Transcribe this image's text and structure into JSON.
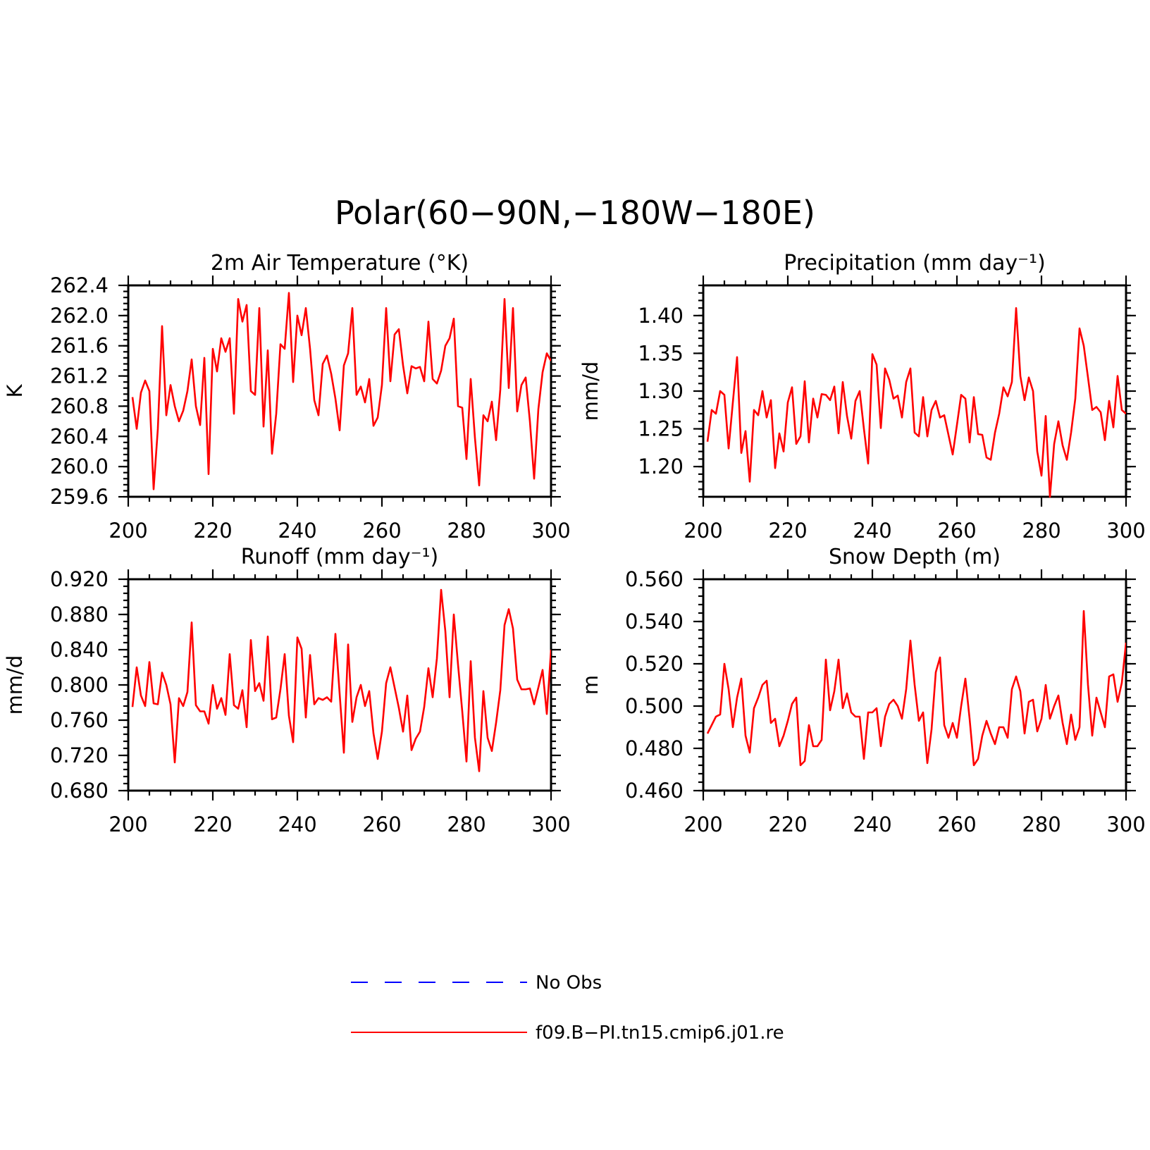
{
  "figure": {
    "title": "Polar(60−90N,−180W−180E)"
  },
  "legend": {
    "entries": [
      {
        "label": "No Obs",
        "color": "#0000ff",
        "dash": "dashed"
      },
      {
        "label": "f09.B−PI.tn15.cmip6.j01.re",
        "color": "#ff0000",
        "dash": "solid"
      }
    ]
  },
  "chart_data": [
    {
      "type": "line",
      "title": "2m Air Temperature (°K)",
      "ylabel": "K",
      "xlabel": "",
      "xlim": [
        200,
        300
      ],
      "ylim": [
        259.6,
        262.4
      ],
      "xticks": [
        "200",
        "220",
        "240",
        "260",
        "280",
        "300"
      ],
      "yticks": [
        "259.6",
        "260.0",
        "260.4",
        "260.8",
        "261.2",
        "261.6",
        "262.0",
        "262.4"
      ],
      "x_start": 201,
      "series": [
        {
          "color": "#ff0000",
          "values": [
            260.92,
            260.5,
            260.98,
            261.14,
            261.0,
            259.7,
            260.5,
            261.86,
            260.68,
            261.08,
            260.8,
            260.6,
            260.74,
            261.0,
            261.42,
            260.8,
            260.55,
            261.44,
            259.9,
            261.56,
            261.26,
            261.7,
            261.52,
            261.7,
            260.7,
            262.22,
            261.92,
            262.14,
            261.0,
            260.95,
            262.1,
            260.53,
            261.54,
            260.17,
            260.7,
            261.62,
            261.56,
            262.3,
            261.12,
            262.0,
            261.74,
            262.1,
            261.56,
            260.88,
            260.68,
            261.36,
            261.47,
            261.23,
            260.9,
            260.48,
            261.34,
            261.5,
            262.1,
            260.95,
            261.06,
            260.85,
            261.16,
            260.54,
            260.65,
            261.08,
            262.1,
            261.13,
            261.75,
            261.82,
            261.34,
            260.97,
            261.33,
            261.3,
            261.32,
            261.13,
            261.92,
            261.16,
            261.1,
            261.27,
            261.6,
            261.7,
            261.96,
            260.8,
            260.78,
            260.1,
            261.16,
            260.38,
            259.75,
            260.68,
            260.6,
            260.86,
            260.35,
            261.02,
            262.22,
            261.04,
            262.1,
            260.73,
            261.08,
            261.18,
            260.6,
            259.84,
            260.76,
            261.25,
            261.5,
            261.4
          ]
        }
      ]
    },
    {
      "type": "line",
      "title": "Precipitation (mm day⁻¹)",
      "ylabel": "mm/d",
      "xlabel": "",
      "xlim": [
        200,
        300
      ],
      "ylim": [
        1.16,
        1.44
      ],
      "xticks": [
        "200",
        "220",
        "240",
        "260",
        "280",
        "300"
      ],
      "yticks": [
        "1.20",
        "1.25",
        "1.30",
        "1.35",
        "1.40"
      ],
      "x_start": 201,
      "series": [
        {
          "color": "#ff0000",
          "values": [
            1.233,
            1.275,
            1.27,
            1.3,
            1.295,
            1.224,
            1.285,
            1.345,
            1.218,
            1.247,
            1.18,
            1.275,
            1.268,
            1.3,
            1.265,
            1.288,
            1.198,
            1.244,
            1.22,
            1.285,
            1.305,
            1.23,
            1.24,
            1.313,
            1.232,
            1.29,
            1.265,
            1.296,
            1.295,
            1.288,
            1.306,
            1.244,
            1.312,
            1.267,
            1.237,
            1.287,
            1.3,
            1.25,
            1.204,
            1.349,
            1.335,
            1.251,
            1.33,
            1.315,
            1.29,
            1.294,
            1.265,
            1.312,
            1.33,
            1.245,
            1.24,
            1.292,
            1.24,
            1.275,
            1.287,
            1.265,
            1.268,
            1.242,
            1.216,
            1.255,
            1.295,
            1.29,
            1.232,
            1.292,
            1.243,
            1.242,
            1.212,
            1.209,
            1.245,
            1.27,
            1.305,
            1.293,
            1.312,
            1.41,
            1.32,
            1.288,
            1.318,
            1.3,
            1.22,
            1.188,
            1.267,
            1.16,
            1.23,
            1.26,
            1.228,
            1.209,
            1.245,
            1.29,
            1.383,
            1.36,
            1.318,
            1.275,
            1.279,
            1.272,
            1.235,
            1.287,
            1.252,
            1.32,
            1.275,
            1.27
          ]
        }
      ]
    },
    {
      "type": "line",
      "title": "Runoff (mm day⁻¹)",
      "ylabel": "mm/d",
      "xlabel": "",
      "xlim": [
        200,
        300
      ],
      "ylim": [
        0.68,
        0.92
      ],
      "xticks": [
        "200",
        "220",
        "240",
        "260",
        "280",
        "300"
      ],
      "yticks": [
        "0.680",
        "0.720",
        "0.760",
        "0.800",
        "0.840",
        "0.880",
        "0.920"
      ],
      "x_start": 201,
      "series": [
        {
          "color": "#ff0000",
          "values": [
            0.775,
            0.82,
            0.788,
            0.776,
            0.826,
            0.779,
            0.778,
            0.814,
            0.8,
            0.778,
            0.712,
            0.785,
            0.776,
            0.792,
            0.871,
            0.777,
            0.77,
            0.77,
            0.756,
            0.8,
            0.773,
            0.785,
            0.766,
            0.835,
            0.777,
            0.773,
            0.794,
            0.752,
            0.851,
            0.793,
            0.802,
            0.782,
            0.855,
            0.761,
            0.763,
            0.795,
            0.835,
            0.765,
            0.735,
            0.854,
            0.841,
            0.763,
            0.834,
            0.778,
            0.785,
            0.783,
            0.786,
            0.781,
            0.858,
            0.79,
            0.723,
            0.846,
            0.758,
            0.786,
            0.8,
            0.776,
            0.793,
            0.745,
            0.716,
            0.747,
            0.802,
            0.82,
            0.797,
            0.774,
            0.747,
            0.788,
            0.726,
            0.739,
            0.747,
            0.775,
            0.819,
            0.786,
            0.83,
            0.908,
            0.861,
            0.786,
            0.88,
            0.823,
            0.77,
            0.713,
            0.827,
            0.74,
            0.702,
            0.793,
            0.74,
            0.725,
            0.757,
            0.794,
            0.868,
            0.886,
            0.864,
            0.806,
            0.795,
            0.795,
            0.796,
            0.778,
            0.797,
            0.817,
            0.767,
            0.84
          ]
        }
      ]
    },
    {
      "type": "line",
      "title": "Snow Depth (m)",
      "ylabel": "m",
      "xlabel": "",
      "xlim": [
        200,
        300
      ],
      "ylim": [
        0.46,
        0.56
      ],
      "xticks": [
        "200",
        "220",
        "240",
        "260",
        "280",
        "300"
      ],
      "yticks": [
        "0.460",
        "0.480",
        "0.500",
        "0.520",
        "0.540",
        "0.560"
      ],
      "x_start": 201,
      "series": [
        {
          "color": "#ff0000",
          "values": [
            0.487,
            0.491,
            0.495,
            0.496,
            0.52,
            0.508,
            0.49,
            0.504,
            0.513,
            0.486,
            0.478,
            0.499,
            0.504,
            0.51,
            0.512,
            0.492,
            0.494,
            0.481,
            0.486,
            0.493,
            0.501,
            0.504,
            0.472,
            0.474,
            0.491,
            0.481,
            0.481,
            0.484,
            0.522,
            0.498,
            0.507,
            0.522,
            0.499,
            0.506,
            0.497,
            0.495,
            0.495,
            0.475,
            0.497,
            0.497,
            0.499,
            0.481,
            0.495,
            0.501,
            0.503,
            0.5,
            0.494,
            0.508,
            0.531,
            0.51,
            0.493,
            0.497,
            0.473,
            0.489,
            0.516,
            0.523,
            0.491,
            0.485,
            0.492,
            0.485,
            0.5,
            0.513,
            0.494,
            0.472,
            0.475,
            0.486,
            0.493,
            0.487,
            0.482,
            0.49,
            0.49,
            0.485,
            0.508,
            0.514,
            0.507,
            0.487,
            0.502,
            0.503,
            0.488,
            0.494,
            0.51,
            0.494,
            0.5,
            0.505,
            0.492,
            0.482,
            0.496,
            0.484,
            0.49,
            0.545,
            0.51,
            0.486,
            0.504,
            0.497,
            0.49,
            0.514,
            0.515,
            0.502,
            0.511,
            0.53
          ]
        }
      ]
    }
  ]
}
